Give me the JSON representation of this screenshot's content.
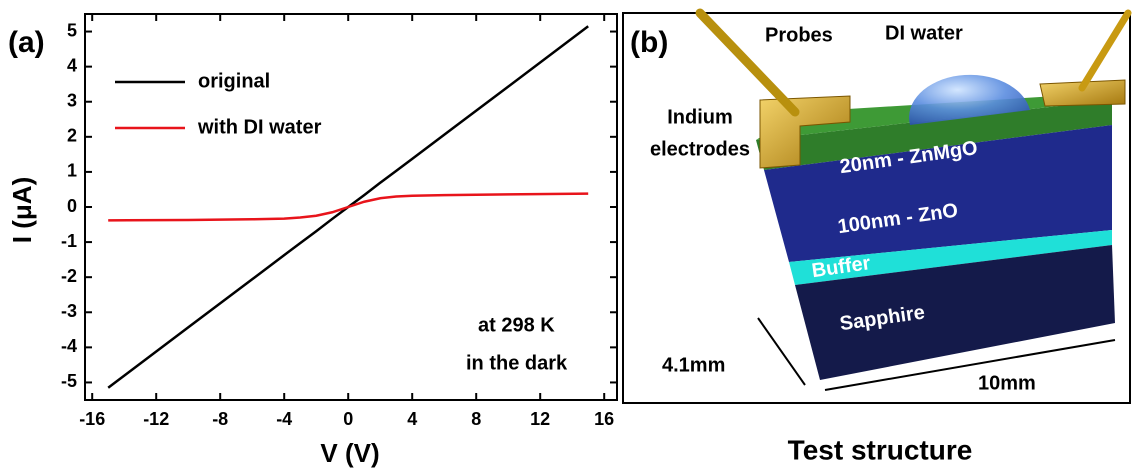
{
  "chart_data": {
    "type": "line",
    "panel_label": "(a)",
    "x_label": "V (V)",
    "y_label": "I (μA)",
    "x": [
      -15,
      -10,
      -6,
      -4,
      -3,
      -2,
      -1,
      0,
      1,
      2,
      3,
      4,
      6,
      10,
      15
    ],
    "series": [
      {
        "name": "original",
        "color": "#000000",
        "values": [
          -5.15,
          -3.43,
          -2.06,
          -1.37,
          -1.03,
          -0.69,
          -0.34,
          0,
          0.34,
          0.69,
          1.03,
          1.37,
          2.06,
          3.43,
          5.15
        ]
      },
      {
        "name": "with DI water",
        "color": "#e8141b",
        "values": [
          -0.38,
          -0.37,
          -0.35,
          -0.33,
          -0.3,
          -0.25,
          -0.15,
          0,
          0.15,
          0.25,
          0.3,
          0.32,
          0.34,
          0.36,
          0.38
        ]
      }
    ],
    "xlim": [
      -16.45,
      16.8
    ],
    "xticks": [
      -16,
      -12,
      -8,
      -4,
      0,
      4,
      8,
      12,
      16
    ],
    "ylim": [
      -5.5,
      5.5
    ],
    "yticks": [
      -5,
      -4,
      -3,
      -2,
      -1,
      0,
      1,
      2,
      3,
      4,
      5
    ],
    "legend": "upper left",
    "annotations": [
      "at 298 K",
      "in the dark"
    ]
  },
  "diagram": {
    "panel_label": "(b)",
    "caption": "Test structure",
    "probes": "Probes",
    "droplet": "DI water",
    "electrodes": [
      "Indium",
      "electrodes"
    ],
    "layers": [
      "20nm - ZnMgO",
      "100nm - ZnO",
      "Buffer",
      "Sapphire"
    ],
    "dimensions": [
      "4.1mm",
      "10mm"
    ]
  }
}
